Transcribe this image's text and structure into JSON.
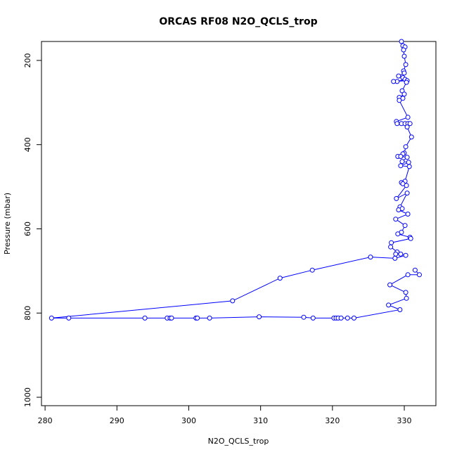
{
  "chart_data": {
    "type": "scatter",
    "title": "ORCAS RF08 N2O_QCLS_trop",
    "xlabel": "N2O_QCLS_trop",
    "ylabel": "Pressure (mbar)",
    "xlim": [
      279.5,
      334.4
    ],
    "ylim": [
      1020,
      155
    ],
    "y_inverted": true,
    "x_ticks": [
      280,
      290,
      300,
      310,
      320,
      330
    ],
    "y_ticks": [
      200,
      400,
      600,
      800,
      1000
    ],
    "grid": false,
    "legend": "none",
    "series_color": "#0000ff",
    "marker": "open-circle",
    "line": true,
    "points": [
      {
        "x": 329.6,
        "y": 155
      },
      {
        "x": 329.8,
        "y": 165
      },
      {
        "x": 330.1,
        "y": 168
      },
      {
        "x": 329.9,
        "y": 175
      },
      {
        "x": 330.0,
        "y": 190
      },
      {
        "x": 330.2,
        "y": 210
      },
      {
        "x": 329.9,
        "y": 225
      },
      {
        "x": 330.0,
        "y": 230
      },
      {
        "x": 329.2,
        "y": 237
      },
      {
        "x": 329.8,
        "y": 241
      },
      {
        "x": 330.1,
        "y": 245
      },
      {
        "x": 329.0,
        "y": 250
      },
      {
        "x": 328.5,
        "y": 250
      },
      {
        "x": 330.4,
        "y": 248
      },
      {
        "x": 330.3,
        "y": 252
      },
      {
        "x": 329.7,
        "y": 272
      },
      {
        "x": 330.0,
        "y": 280
      },
      {
        "x": 329.3,
        "y": 288
      },
      {
        "x": 329.8,
        "y": 290
      },
      {
        "x": 329.3,
        "y": 295
      },
      {
        "x": 330.5,
        "y": 335
      },
      {
        "x": 328.9,
        "y": 345
      },
      {
        "x": 329.0,
        "y": 350
      },
      {
        "x": 329.6,
        "y": 350
      },
      {
        "x": 330.1,
        "y": 350
      },
      {
        "x": 330.5,
        "y": 350
      },
      {
        "x": 330.8,
        "y": 350
      },
      {
        "x": 330.4,
        "y": 358
      },
      {
        "x": 331.0,
        "y": 382
      },
      {
        "x": 330.2,
        "y": 405
      },
      {
        "x": 330.0,
        "y": 420
      },
      {
        "x": 329.8,
        "y": 422
      },
      {
        "x": 329.1,
        "y": 428
      },
      {
        "x": 329.5,
        "y": 428
      },
      {
        "x": 330.4,
        "y": 430
      },
      {
        "x": 329.7,
        "y": 440
      },
      {
        "x": 330.6,
        "y": 442
      },
      {
        "x": 329.5,
        "y": 450
      },
      {
        "x": 330.7,
        "y": 452
      },
      {
        "x": 330.1,
        "y": 487
      },
      {
        "x": 329.6,
        "y": 490
      },
      {
        "x": 329.8,
        "y": 493
      },
      {
        "x": 330.3,
        "y": 497
      },
      {
        "x": 328.9,
        "y": 528
      },
      {
        "x": 330.4,
        "y": 515
      },
      {
        "x": 329.4,
        "y": 548
      },
      {
        "x": 329.7,
        "y": 552
      },
      {
        "x": 329.2,
        "y": 555
      },
      {
        "x": 330.5,
        "y": 565
      },
      {
        "x": 328.8,
        "y": 577
      },
      {
        "x": 330.1,
        "y": 592
      },
      {
        "x": 329.6,
        "y": 608
      },
      {
        "x": 329.1,
        "y": 612
      },
      {
        "x": 330.8,
        "y": 620
      },
      {
        "x": 330.9,
        "y": 623
      },
      {
        "x": 328.2,
        "y": 633
      },
      {
        "x": 328.1,
        "y": 643
      },
      {
        "x": 329.0,
        "y": 655
      },
      {
        "x": 328.8,
        "y": 660
      },
      {
        "x": 329.5,
        "y": 660
      },
      {
        "x": 330.2,
        "y": 663
      },
      {
        "x": 328.7,
        "y": 670
      },
      {
        "x": 325.3,
        "y": 667
      },
      {
        "x": 317.2,
        "y": 698
      },
      {
        "x": 312.7,
        "y": 717
      },
      {
        "x": 306.1,
        "y": 771
      },
      {
        "x": 280.9,
        "y": 812
      },
      {
        "x": 283.3,
        "y": 812
      },
      {
        "x": 293.9,
        "y": 812
      },
      {
        "x": 297.0,
        "y": 812
      },
      {
        "x": 297.4,
        "y": 812
      },
      {
        "x": 297.6,
        "y": 812
      },
      {
        "x": 301.0,
        "y": 812
      },
      {
        "x": 301.2,
        "y": 812
      },
      {
        "x": 302.9,
        "y": 812
      },
      {
        "x": 309.8,
        "y": 809
      },
      {
        "x": 316.0,
        "y": 810
      },
      {
        "x": 317.3,
        "y": 812
      },
      {
        "x": 320.2,
        "y": 812
      },
      {
        "x": 320.5,
        "y": 812
      },
      {
        "x": 320.8,
        "y": 812
      },
      {
        "x": 321.2,
        "y": 812
      },
      {
        "x": 322.1,
        "y": 812
      },
      {
        "x": 323.0,
        "y": 812
      },
      {
        "x": 329.4,
        "y": 792
      },
      {
        "x": 327.8,
        "y": 781
      },
      {
        "x": 330.3,
        "y": 765
      },
      {
        "x": 330.2,
        "y": 751
      },
      {
        "x": 328.0,
        "y": 733
      },
      {
        "x": 330.5,
        "y": 709
      },
      {
        "x": 332.1,
        "y": 709
      },
      {
        "x": 331.5,
        "y": 698
      }
    ]
  }
}
